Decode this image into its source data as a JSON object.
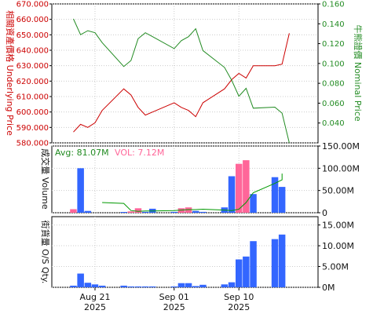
{
  "chart_data": [
    {
      "type": "line",
      "panel": "price",
      "x": [
        "2025-08-18",
        "2025-08-19",
        "2025-08-20",
        "2025-08-21",
        "2025-08-22",
        "2025-08-25",
        "2025-08-26",
        "2025-08-27",
        "2025-08-28",
        "2025-08-29",
        "2025-09-01",
        "2025-09-02",
        "2025-09-03",
        "2025-09-04",
        "2025-09-05",
        "2025-09-08",
        "2025-09-09",
        "2025-09-10",
        "2025-09-11",
        "2025-09-12",
        "2025-09-15",
        "2025-09-16",
        "2025-09-17"
      ],
      "ylabel_left": "相關資產價格 Underlying Price",
      "ylabel_right": "牛熊證價 Nominal Price",
      "ylim_left": [
        580,
        670
      ],
      "ylim_right": [
        0.02,
        0.16
      ],
      "yticks_left": [
        "580.000",
        "590.000",
        "600.000",
        "610.000",
        "620.000",
        "630.000",
        "640.000",
        "650.000",
        "660.000",
        "670.000"
      ],
      "yticks_right": [
        "0.040",
        "0.060",
        "0.080",
        "0.100",
        "0.120",
        "0.140",
        "0.160"
      ],
      "series": [
        {
          "axis": "left",
          "color": "#cc0000",
          "values": [
            587,
            592,
            590,
            593,
            601,
            615,
            611,
            603,
            598,
            600,
            606,
            603,
            601,
            597,
            606,
            615,
            621,
            625,
            622,
            630,
            630,
            631,
            651
          ]
        },
        {
          "axis": "right",
          "color": "#228b22",
          "values": [
            0.145,
            0.129,
            0.133,
            0.131,
            0.121,
            0.097,
            0.103,
            0.125,
            0.131,
            0.127,
            0.115,
            0.123,
            0.127,
            0.135,
            0.113,
            0.096,
            0.083,
            0.067,
            0.075,
            0.055,
            0.056,
            0.05,
            0.02
          ]
        }
      ]
    },
    {
      "type": "bar",
      "panel": "volume",
      "ylabel": "成交量 Volume",
      "ylim": [
        0,
        150000000
      ],
      "yticks": [
        "0",
        "50.00M",
        "100.00M",
        "150.00M"
      ],
      "legend": {
        "avg_label": "Avg: 81.07M",
        "vol_label": "VOL: 7.12M"
      },
      "bar_colors": {
        "up": "#ff6699",
        "down": "#3366ff"
      },
      "bars": [
        {
          "x": "2025-08-18",
          "value": 8000000,
          "color": "up"
        },
        {
          "x": "2025-08-19",
          "value": 100000000,
          "color": "down"
        },
        {
          "x": "2025-08-20",
          "value": 4000000,
          "color": "down"
        },
        {
          "x": "2025-08-21",
          "value": 0,
          "color": "down"
        },
        {
          "x": "2025-08-22",
          "value": 0,
          "color": "down"
        },
        {
          "x": "2025-08-25",
          "value": 1000000,
          "color": "down"
        },
        {
          "x": "2025-08-26",
          "value": 3000000,
          "color": "up"
        },
        {
          "x": "2025-08-27",
          "value": 10000000,
          "color": "up"
        },
        {
          "x": "2025-08-28",
          "value": 2000000,
          "color": "down"
        },
        {
          "x": "2025-08-29",
          "value": 9000000,
          "color": "down"
        },
        {
          "x": "2025-09-01",
          "value": 2000000,
          "color": "down"
        },
        {
          "x": "2025-09-02",
          "value": 10000000,
          "color": "up"
        },
        {
          "x": "2025-09-03",
          "value": 12000000,
          "color": "up"
        },
        {
          "x": "2025-09-04",
          "value": 4000000,
          "color": "down"
        },
        {
          "x": "2025-09-05",
          "value": 2000000,
          "color": "down"
        },
        {
          "x": "2025-09-08",
          "value": 12000000,
          "color": "down"
        },
        {
          "x": "2025-09-09",
          "value": 82000000,
          "color": "down"
        },
        {
          "x": "2025-09-10",
          "value": 110000000,
          "color": "up"
        },
        {
          "x": "2025-09-11",
          "value": 118000000,
          "color": "up"
        },
        {
          "x": "2025-09-12",
          "value": 42000000,
          "color": "down"
        },
        {
          "x": "2025-09-15",
          "value": 80000000,
          "color": "down"
        },
        {
          "x": "2025-09-16",
          "value": 58000000,
          "color": "down"
        }
      ],
      "avg_line": {
        "color": "#009900",
        "x_start": "2025-08-22",
        "values": [
          23000000,
          21000000,
          5000000,
          3000000,
          4000000,
          4000000,
          5000000,
          6000000,
          7000000,
          7000000,
          8000000,
          6000000,
          5000000,
          8000000,
          23000000,
          45000000,
          66000000,
          74000000,
          88000000,
          84000000
        ]
      }
    },
    {
      "type": "bar",
      "panel": "os_qty",
      "ylabel": "街貨量 O/S Qty.",
      "ylim": [
        0,
        17000000
      ],
      "yticks": [
        "0M",
        "5.00M",
        "10.00M",
        "15.00M"
      ],
      "bar_color": "#3366ff",
      "bars": [
        {
          "x": "2025-08-18",
          "value": 400000
        },
        {
          "x": "2025-08-19",
          "value": 3300000
        },
        {
          "x": "2025-08-20",
          "value": 1100000
        },
        {
          "x": "2025-08-21",
          "value": 700000
        },
        {
          "x": "2025-08-22",
          "value": 400000
        },
        {
          "x": "2025-08-25",
          "value": 400000
        },
        {
          "x": "2025-08-26",
          "value": 200000
        },
        {
          "x": "2025-08-27",
          "value": 200000
        },
        {
          "x": "2025-08-28",
          "value": 200000
        },
        {
          "x": "2025-08-29",
          "value": 200000
        },
        {
          "x": "2025-09-01",
          "value": 200000
        },
        {
          "x": "2025-09-02",
          "value": 1000000
        },
        {
          "x": "2025-09-03",
          "value": 1000000
        },
        {
          "x": "2025-09-04",
          "value": 300000
        },
        {
          "x": "2025-09-05",
          "value": 600000
        },
        {
          "x": "2025-09-08",
          "value": 700000
        },
        {
          "x": "2025-09-09",
          "value": 1200000
        },
        {
          "x": "2025-09-10",
          "value": 6700000
        },
        {
          "x": "2025-09-11",
          "value": 7400000
        },
        {
          "x": "2025-09-12",
          "value": 11100000
        },
        {
          "x": "2025-09-15",
          "value": 11600000
        },
        {
          "x": "2025-09-16",
          "value": 12700000
        }
      ]
    }
  ],
  "x_axis": {
    "ticks": [
      {
        "x": "2025-08-21",
        "label": "Aug 21",
        "year": "2025"
      },
      {
        "x": "2025-09-01",
        "label": "Sep 01",
        "year": "2025"
      },
      {
        "x": "2025-09-10",
        "label": "Sep 10",
        "year": "2025"
      }
    ]
  }
}
